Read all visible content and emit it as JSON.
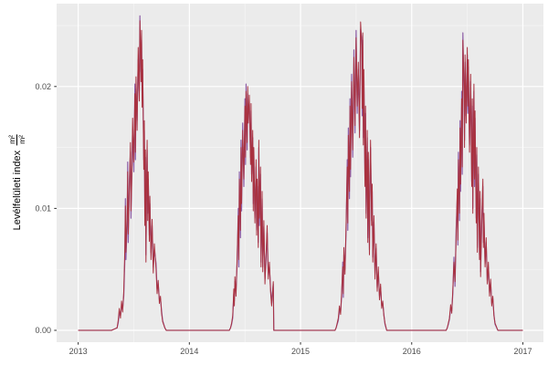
{
  "chart_data": {
    "type": "line",
    "title": "",
    "xlabel": "",
    "ylabel": "Levélfelületi index m²/m²",
    "ylabel_text": "Levélfelületi index",
    "ylabel_unit": {
      "num": "m²",
      "den": "m²"
    },
    "legend": false,
    "grid": true,
    "xlim": [
      2012.81,
      2017.19
    ],
    "ylim": [
      -0.0009,
      0.0268
    ],
    "x_ticks": [
      {
        "value": 2013,
        "label": "2013"
      },
      {
        "value": 2014,
        "label": "2014"
      },
      {
        "value": 2015,
        "label": "2015"
      },
      {
        "value": 2016,
        "label": "2016"
      },
      {
        "value": 2017,
        "label": "2017"
      }
    ],
    "y_ticks": [
      {
        "value": 0.0,
        "label": "0.00"
      },
      {
        "value": 0.01,
        "label": "0.01"
      },
      {
        "value": 0.02,
        "label": "0.02"
      }
    ],
    "x_minor": [
      2013.5,
      2014.5,
      2015.5,
      2016.5
    ],
    "y_minor": [
      0.005,
      0.015,
      0.025
    ],
    "colors": {
      "panel": "#EBEBEB",
      "grid_major": "#FFFFFF",
      "grid_minor": "#F6F6F6",
      "tick_label": "#4D4D4D",
      "tick_mark": "#333333",
      "axis_title": "#000000",
      "series_red": "#A93240",
      "series_purple": "#8E5FA7"
    },
    "series_meta": [
      {
        "name": "lai-red",
        "color": "#A93240",
        "column": 1
      },
      {
        "name": "lai-purple",
        "color": "#8E5FA7",
        "column": 2
      }
    ],
    "columns": [
      "year",
      "lai_red",
      "lai_purple"
    ],
    "points": [
      [
        2013.0,
        0,
        0
      ],
      [
        2013.3,
        0,
        0
      ],
      [
        2013.35,
        0.0002,
        0.0002
      ],
      [
        2013.36,
        0.0008,
        0.0006
      ],
      [
        2013.37,
        0.0018,
        0.0014
      ],
      [
        2013.38,
        0.001,
        0.0012
      ],
      [
        2013.39,
        0.0024,
        0.002
      ],
      [
        2013.4,
        0.0015,
        0.0018
      ],
      [
        2013.41,
        0.0032,
        0.0028
      ],
      [
        2013.42,
        0.0068,
        0.0058
      ],
      [
        2013.425,
        0.0102,
        0.0108
      ],
      [
        2013.43,
        0.0064,
        0.0058
      ],
      [
        2013.44,
        0.0096,
        0.0088
      ],
      [
        2013.445,
        0.013,
        0.0138
      ],
      [
        2013.45,
        0.0079,
        0.0072
      ],
      [
        2013.46,
        0.0115,
        0.0122
      ],
      [
        2013.47,
        0.0154,
        0.0146
      ],
      [
        2013.475,
        0.0098,
        0.0092
      ],
      [
        2013.485,
        0.0136,
        0.0142
      ],
      [
        2013.49,
        0.0174,
        0.0165
      ],
      [
        2013.5,
        0.0138,
        0.013
      ],
      [
        2013.51,
        0.0194,
        0.0202
      ],
      [
        2013.515,
        0.0146,
        0.014
      ],
      [
        2013.52,
        0.0208,
        0.0198
      ],
      [
        2013.53,
        0.0164,
        0.0172
      ],
      [
        2013.54,
        0.0232,
        0.0222
      ],
      [
        2013.55,
        0.0188,
        0.0196
      ],
      [
        2013.555,
        0.0254,
        0.0258
      ],
      [
        2013.56,
        0.0236,
        0.0228
      ],
      [
        2013.565,
        0.0204,
        0.0212
      ],
      [
        2013.57,
        0.0246,
        0.0238
      ],
      [
        2013.575,
        0.0183,
        0.019
      ],
      [
        2013.58,
        0.0222,
        0.0214
      ],
      [
        2013.59,
        0.0132,
        0.014
      ],
      [
        2013.595,
        0.0172,
        0.0164
      ],
      [
        2013.6,
        0.0086,
        0.0094
      ],
      [
        2013.605,
        0.0148,
        0.0142
      ],
      [
        2013.61,
        0.0056,
        0.0062
      ],
      [
        2013.615,
        0.0124,
        0.0118
      ],
      [
        2013.62,
        0.0156,
        0.0148
      ],
      [
        2013.625,
        0.009,
        0.0096
      ],
      [
        2013.63,
        0.013,
        0.0124
      ],
      [
        2013.64,
        0.0073,
        0.0078
      ],
      [
        2013.645,
        0.011,
        0.0104
      ],
      [
        2013.655,
        0.0058,
        0.0064
      ],
      [
        2013.665,
        0.0091,
        0.0086
      ],
      [
        2013.675,
        0.0047,
        0.0052
      ],
      [
        2013.685,
        0.0071,
        0.0066
      ],
      [
        2013.7,
        0.0051,
        0.0055
      ],
      [
        2013.71,
        0.003,
        0.0034
      ],
      [
        2013.72,
        0.0041,
        0.0038
      ],
      [
        2013.73,
        0.0022,
        0.0025
      ],
      [
        2013.74,
        0.0028,
        0.0026
      ],
      [
        2013.75,
        0.0014,
        0.0016
      ],
      [
        2013.76,
        0.0007,
        0.0008
      ],
      [
        2013.78,
        0.0002,
        0.0002
      ],
      [
        2013.792,
        0,
        0
      ],
      [
        2014.36,
        0,
        0
      ],
      [
        2014.37,
        0.0002,
        0.0002
      ],
      [
        2014.38,
        0.0006,
        0.0005
      ],
      [
        2014.39,
        0.0012,
        0.001
      ],
      [
        2014.4,
        0.0034,
        0.003
      ],
      [
        2014.405,
        0.002,
        0.0024
      ],
      [
        2014.41,
        0.0044,
        0.004
      ],
      [
        2014.42,
        0.0028,
        0.0032
      ],
      [
        2014.43,
        0.0062,
        0.0056
      ],
      [
        2014.44,
        0.0094,
        0.01
      ],
      [
        2014.445,
        0.0058,
        0.0052
      ],
      [
        2014.45,
        0.0124,
        0.013
      ],
      [
        2014.46,
        0.0082,
        0.0076
      ],
      [
        2014.465,
        0.015,
        0.0156
      ],
      [
        2014.47,
        0.0104,
        0.0098
      ],
      [
        2014.48,
        0.0164,
        0.017
      ],
      [
        2014.49,
        0.0124,
        0.0118
      ],
      [
        2014.5,
        0.0184,
        0.019
      ],
      [
        2014.505,
        0.0142,
        0.0136
      ],
      [
        2014.51,
        0.0196,
        0.0202
      ],
      [
        2014.52,
        0.0154,
        0.0148
      ],
      [
        2014.525,
        0.02,
        0.0194
      ],
      [
        2014.53,
        0.017,
        0.0176
      ],
      [
        2014.54,
        0.0193,
        0.0186
      ],
      [
        2014.55,
        0.0136,
        0.0142
      ],
      [
        2014.555,
        0.0186,
        0.018
      ],
      [
        2014.56,
        0.0122,
        0.0128
      ],
      [
        2014.57,
        0.0164,
        0.0158
      ],
      [
        2014.575,
        0.0098,
        0.0104
      ],
      [
        2014.58,
        0.015,
        0.0146
      ],
      [
        2014.59,
        0.0088,
        0.0092
      ],
      [
        2014.6,
        0.014,
        0.0134
      ],
      [
        2014.605,
        0.0078,
        0.0082
      ],
      [
        2014.61,
        0.0124,
        0.0118
      ],
      [
        2014.62,
        0.0068,
        0.0072
      ],
      [
        2014.625,
        0.0156,
        0.015
      ],
      [
        2014.63,
        0.0092,
        0.0086
      ],
      [
        2014.64,
        0.0134,
        0.0128
      ],
      [
        2014.645,
        0.0052,
        0.0056
      ],
      [
        2014.655,
        0.0114,
        0.0108
      ],
      [
        2014.66,
        0.0048,
        0.0052
      ],
      [
        2014.67,
        0.009,
        0.0085
      ],
      [
        2014.68,
        0.0038,
        0.0042
      ],
      [
        2014.69,
        0.0062,
        0.0058
      ],
      [
        2014.7,
        0.0086,
        0.008
      ],
      [
        2014.71,
        0.0042,
        0.0046
      ],
      [
        2014.72,
        0.0056,
        0.0052
      ],
      [
        2014.73,
        0.0032,
        0.0035
      ],
      [
        2014.74,
        0.002,
        0.0022
      ],
      [
        2014.755,
        0.004,
        0.0038
      ],
      [
        2014.76,
        0,
        0
      ],
      [
        2015.31,
        0,
        0
      ],
      [
        2015.32,
        0.0002,
        0.0002
      ],
      [
        2015.33,
        0.0006,
        0.0005
      ],
      [
        2015.34,
        0.001,
        0.0008
      ],
      [
        2015.35,
        0.002,
        0.0016
      ],
      [
        2015.36,
        0.0013,
        0.0015
      ],
      [
        2015.37,
        0.0032,
        0.0028
      ],
      [
        2015.38,
        0.0052,
        0.0056
      ],
      [
        2015.385,
        0.003,
        0.0027
      ],
      [
        2015.39,
        0.0068,
        0.0062
      ],
      [
        2015.4,
        0.0046,
        0.005
      ],
      [
        2015.41,
        0.0086,
        0.008
      ],
      [
        2015.42,
        0.0134,
        0.014
      ],
      [
        2015.425,
        0.0088,
        0.0082
      ],
      [
        2015.43,
        0.016,
        0.0166
      ],
      [
        2015.44,
        0.0114,
        0.0108
      ],
      [
        2015.445,
        0.0184,
        0.019
      ],
      [
        2015.45,
        0.0132,
        0.0126
      ],
      [
        2015.46,
        0.0204,
        0.021
      ],
      [
        2015.47,
        0.0148,
        0.0142
      ],
      [
        2015.48,
        0.0224,
        0.023
      ],
      [
        2015.49,
        0.0168,
        0.0162
      ],
      [
        2015.5,
        0.024,
        0.0246
      ],
      [
        2015.51,
        0.0184,
        0.0178
      ],
      [
        2015.52,
        0.022,
        0.0214
      ],
      [
        2015.53,
        0.0158,
        0.0164
      ],
      [
        2015.54,
        0.0253,
        0.0247
      ],
      [
        2015.55,
        0.0234,
        0.024
      ],
      [
        2015.555,
        0.0182,
        0.0176
      ],
      [
        2015.56,
        0.0244,
        0.0238
      ],
      [
        2015.565,
        0.0152,
        0.0158
      ],
      [
        2015.57,
        0.0214,
        0.0208
      ],
      [
        2015.58,
        0.0118,
        0.0124
      ],
      [
        2015.585,
        0.0184,
        0.0178
      ],
      [
        2015.59,
        0.0092,
        0.0096
      ],
      [
        2015.6,
        0.0164,
        0.0158
      ],
      [
        2015.605,
        0.0072,
        0.0076
      ],
      [
        2015.61,
        0.0146,
        0.014
      ],
      [
        2015.62,
        0.0062,
        0.0066
      ],
      [
        2015.625,
        0.0128,
        0.0122
      ],
      [
        2015.63,
        0.0156,
        0.015
      ],
      [
        2015.64,
        0.0086,
        0.009
      ],
      [
        2015.645,
        0.012,
        0.0114
      ],
      [
        2015.65,
        0.0056,
        0.006
      ],
      [
        2015.66,
        0.0094,
        0.0089
      ],
      [
        2015.67,
        0.0042,
        0.0046
      ],
      [
        2015.68,
        0.0071,
        0.0067
      ],
      [
        2015.69,
        0.0032,
        0.0035
      ],
      [
        2015.7,
        0.0052,
        0.0048
      ],
      [
        2015.71,
        0.0025,
        0.0028
      ],
      [
        2015.72,
        0.0038,
        0.0035
      ],
      [
        2015.73,
        0.0018,
        0.002
      ],
      [
        2015.74,
        0.0024,
        0.0022
      ],
      [
        2015.75,
        0.0012,
        0.0013
      ],
      [
        2015.76,
        0.0006,
        0.0005
      ],
      [
        2015.775,
        0,
        0
      ],
      [
        2016.31,
        0,
        0
      ],
      [
        2016.32,
        0.0002,
        0.0002
      ],
      [
        2016.33,
        0.0006,
        0.0005
      ],
      [
        2016.34,
        0.001,
        0.0009
      ],
      [
        2016.35,
        0.0021,
        0.0018
      ],
      [
        2016.36,
        0.0014,
        0.0016
      ],
      [
        2016.37,
        0.0034,
        0.003
      ],
      [
        2016.38,
        0.0056,
        0.006
      ],
      [
        2016.39,
        0.004,
        0.0036
      ],
      [
        2016.4,
        0.0076,
        0.0082
      ],
      [
        2016.41,
        0.0116,
        0.011
      ],
      [
        2016.415,
        0.0074,
        0.007
      ],
      [
        2016.42,
        0.014,
        0.0146
      ],
      [
        2016.43,
        0.0096,
        0.009
      ],
      [
        2016.435,
        0.0166,
        0.0172
      ],
      [
        2016.44,
        0.012,
        0.0114
      ],
      [
        2016.45,
        0.019,
        0.0196
      ],
      [
        2016.455,
        0.0134,
        0.0128
      ],
      [
        2016.46,
        0.0238,
        0.0244
      ],
      [
        2016.47,
        0.0202,
        0.0196
      ],
      [
        2016.475,
        0.015,
        0.0156
      ],
      [
        2016.48,
        0.0226,
        0.022
      ],
      [
        2016.49,
        0.017,
        0.0176
      ],
      [
        2016.5,
        0.0232,
        0.0226
      ],
      [
        2016.505,
        0.0184,
        0.0178
      ],
      [
        2016.51,
        0.0222,
        0.0216
      ],
      [
        2016.52,
        0.0146,
        0.0152
      ],
      [
        2016.53,
        0.021,
        0.0204
      ],
      [
        2016.54,
        0.0118,
        0.0122
      ],
      [
        2016.545,
        0.019,
        0.0184
      ],
      [
        2016.55,
        0.0096,
        0.01
      ],
      [
        2016.56,
        0.0202,
        0.0196
      ],
      [
        2016.565,
        0.0124,
        0.0118
      ],
      [
        2016.57,
        0.018,
        0.0174
      ],
      [
        2016.58,
        0.0088,
        0.0092
      ],
      [
        2016.585,
        0.015,
        0.0144
      ],
      [
        2016.59,
        0.0064,
        0.0068
      ],
      [
        2016.6,
        0.0134,
        0.0128
      ],
      [
        2016.61,
        0.0058,
        0.0062
      ],
      [
        2016.615,
        0.0114,
        0.0108
      ],
      [
        2016.62,
        0.0044,
        0.0048
      ],
      [
        2016.63,
        0.009,
        0.0086
      ],
      [
        2016.64,
        0.0124,
        0.0118
      ],
      [
        2016.645,
        0.0068,
        0.0072
      ],
      [
        2016.65,
        0.0096,
        0.0091
      ],
      [
        2016.66,
        0.0052,
        0.0055
      ],
      [
        2016.67,
        0.0076,
        0.0072
      ],
      [
        2016.68,
        0.0038,
        0.0041
      ],
      [
        2016.69,
        0.0056,
        0.0052
      ],
      [
        2016.7,
        0.0028,
        0.0031
      ],
      [
        2016.71,
        0.0042,
        0.0039
      ],
      [
        2016.72,
        0.002,
        0.0022
      ],
      [
        2016.73,
        0.0028,
        0.0026
      ],
      [
        2016.74,
        0.0012,
        0.0013
      ],
      [
        2016.75,
        0.0006,
        0.0005
      ],
      [
        2016.775,
        0,
        0
      ],
      [
        2017.0,
        0,
        0
      ]
    ]
  }
}
